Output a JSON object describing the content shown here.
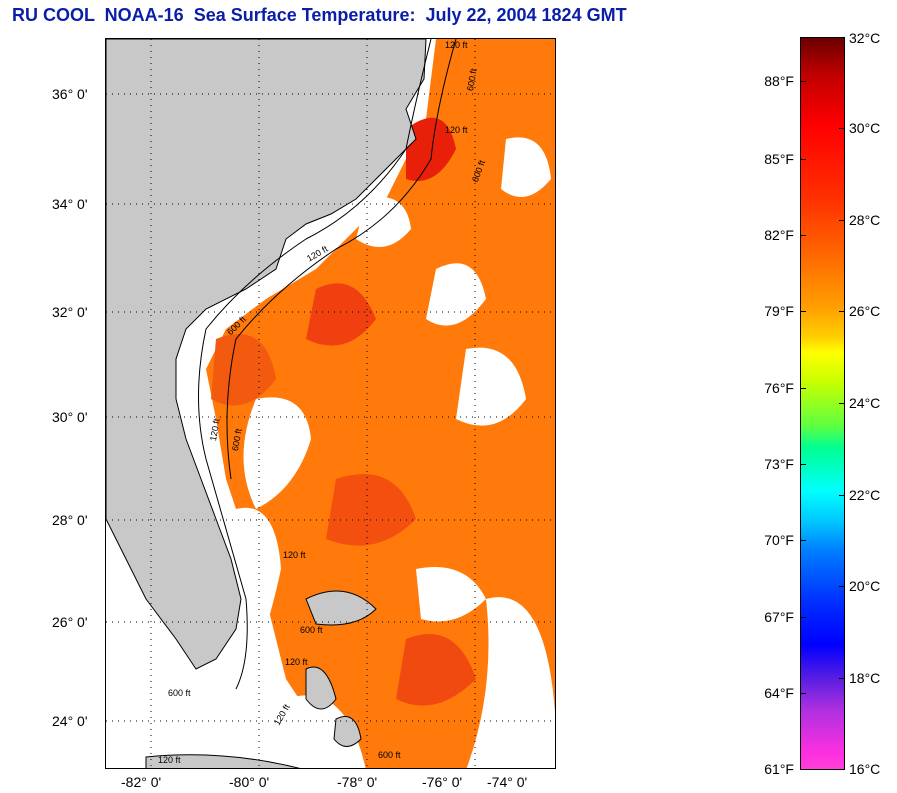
{
  "title": "RU COOL  NOAA-16  Sea Surface Temperature:  July 22, 2004 1824 GMT",
  "latitude_labels": [
    "36° 0'",
    "34° 0'",
    "32° 0'",
    "30° 0'",
    "28° 0'",
    "26° 0'",
    "24° 0'"
  ],
  "longitude_labels": [
    "-82° 0'",
    "-80° 0'",
    "-78° 0'",
    "-76° 0'",
    "-74° 0'"
  ],
  "colorbar": {
    "fahrenheit_labels": [
      "88°F",
      "85°F",
      "82°F",
      "79°F",
      "76°F",
      "73°F",
      "70°F",
      "67°F",
      "64°F",
      "61°F"
    ],
    "celsius_labels": [
      "32°C",
      "30°C",
      "28°C",
      "26°C",
      "24°C",
      "22°C",
      "20°C",
      "18°C",
      "16°C"
    ]
  },
  "contour_labels": [
    "120 ft",
    "600 ft",
    "120 ft",
    "600 ft",
    "120 ft",
    "600 ft",
    "120 ft",
    "600 ft",
    "120 ft",
    "600 ft",
    "120 ft",
    "600 ft",
    "120 ft",
    "600 ft",
    "120 ft"
  ],
  "colors": {
    "title": "#0a1ea8",
    "land": "#c8c8c8",
    "sst_warm": "#ff6a00",
    "sst_hot": "#e82000",
    "cloud_mask": "#ffffff"
  }
}
